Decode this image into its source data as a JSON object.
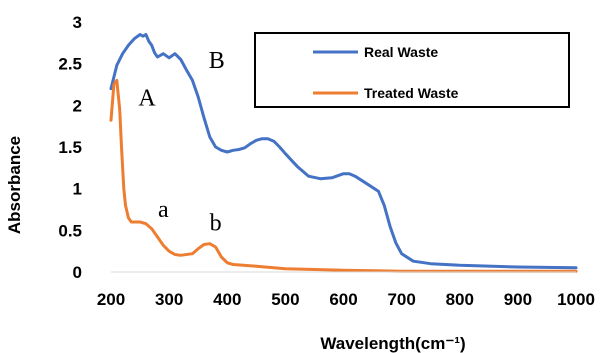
{
  "chart_data": {
    "type": "line",
    "title": "",
    "xlabel": "Wavelength(cm⁻¹)",
    "ylabel": "Absorbance",
    "xlim": [
      200,
      1000
    ],
    "ylim": [
      0,
      3
    ],
    "x_ticks": [
      "200",
      "300",
      "400",
      "500",
      "600",
      "700",
      "800",
      "900",
      "1000"
    ],
    "y_ticks": [
      "0",
      "0.5",
      "1",
      "1.5",
      "2",
      "2.5",
      "3"
    ],
    "grid": false,
    "legend_position": "top-right",
    "series": [
      {
        "name": "Real Waste",
        "color": "#4472C4",
        "x": [
          200,
          210,
          220,
          230,
          240,
          250,
          255,
          260,
          265,
          270,
          275,
          280,
          290,
          300,
          310,
          320,
          330,
          340,
          350,
          360,
          370,
          380,
          390,
          400,
          410,
          420,
          430,
          440,
          450,
          460,
          470,
          480,
          490,
          500,
          520,
          540,
          560,
          580,
          600,
          610,
          620,
          640,
          660,
          670,
          680,
          690,
          700,
          720,
          750,
          800,
          900,
          1000
        ],
        "y": [
          2.2,
          2.48,
          2.62,
          2.72,
          2.8,
          2.85,
          2.83,
          2.85,
          2.77,
          2.72,
          2.63,
          2.58,
          2.62,
          2.57,
          2.62,
          2.55,
          2.42,
          2.3,
          2.1,
          1.85,
          1.62,
          1.5,
          1.46,
          1.44,
          1.46,
          1.47,
          1.49,
          1.54,
          1.58,
          1.6,
          1.6,
          1.57,
          1.5,
          1.42,
          1.27,
          1.15,
          1.12,
          1.13,
          1.18,
          1.18,
          1.15,
          1.06,
          0.97,
          0.8,
          0.55,
          0.35,
          0.22,
          0.13,
          0.1,
          0.08,
          0.06,
          0.05
        ]
      },
      {
        "name": "Treated Waste",
        "color": "#ED7D31",
        "x": [
          200,
          205,
          210,
          215,
          218,
          222,
          225,
          230,
          235,
          240,
          250,
          260,
          270,
          280,
          290,
          300,
          310,
          320,
          340,
          350,
          360,
          370,
          380,
          390,
          400,
          410,
          450,
          500,
          600,
          700,
          800,
          900,
          1000
        ],
        "y": [
          1.82,
          2.25,
          2.3,
          1.95,
          1.5,
          1.0,
          0.8,
          0.65,
          0.6,
          0.6,
          0.6,
          0.58,
          0.52,
          0.42,
          0.32,
          0.25,
          0.21,
          0.2,
          0.22,
          0.28,
          0.33,
          0.34,
          0.3,
          0.18,
          0.11,
          0.09,
          0.07,
          0.04,
          0.02,
          0.01,
          0.01,
          0.01,
          0.01
        ]
      }
    ],
    "annotations": [
      {
        "text": "A",
        "x": 262,
        "y": 2.0
      },
      {
        "text": "B",
        "x": 382,
        "y": 2.45
      },
      {
        "text": "a",
        "x": 290,
        "y": 0.66
      },
      {
        "text": "b",
        "x": 380,
        "y": 0.5
      }
    ]
  }
}
